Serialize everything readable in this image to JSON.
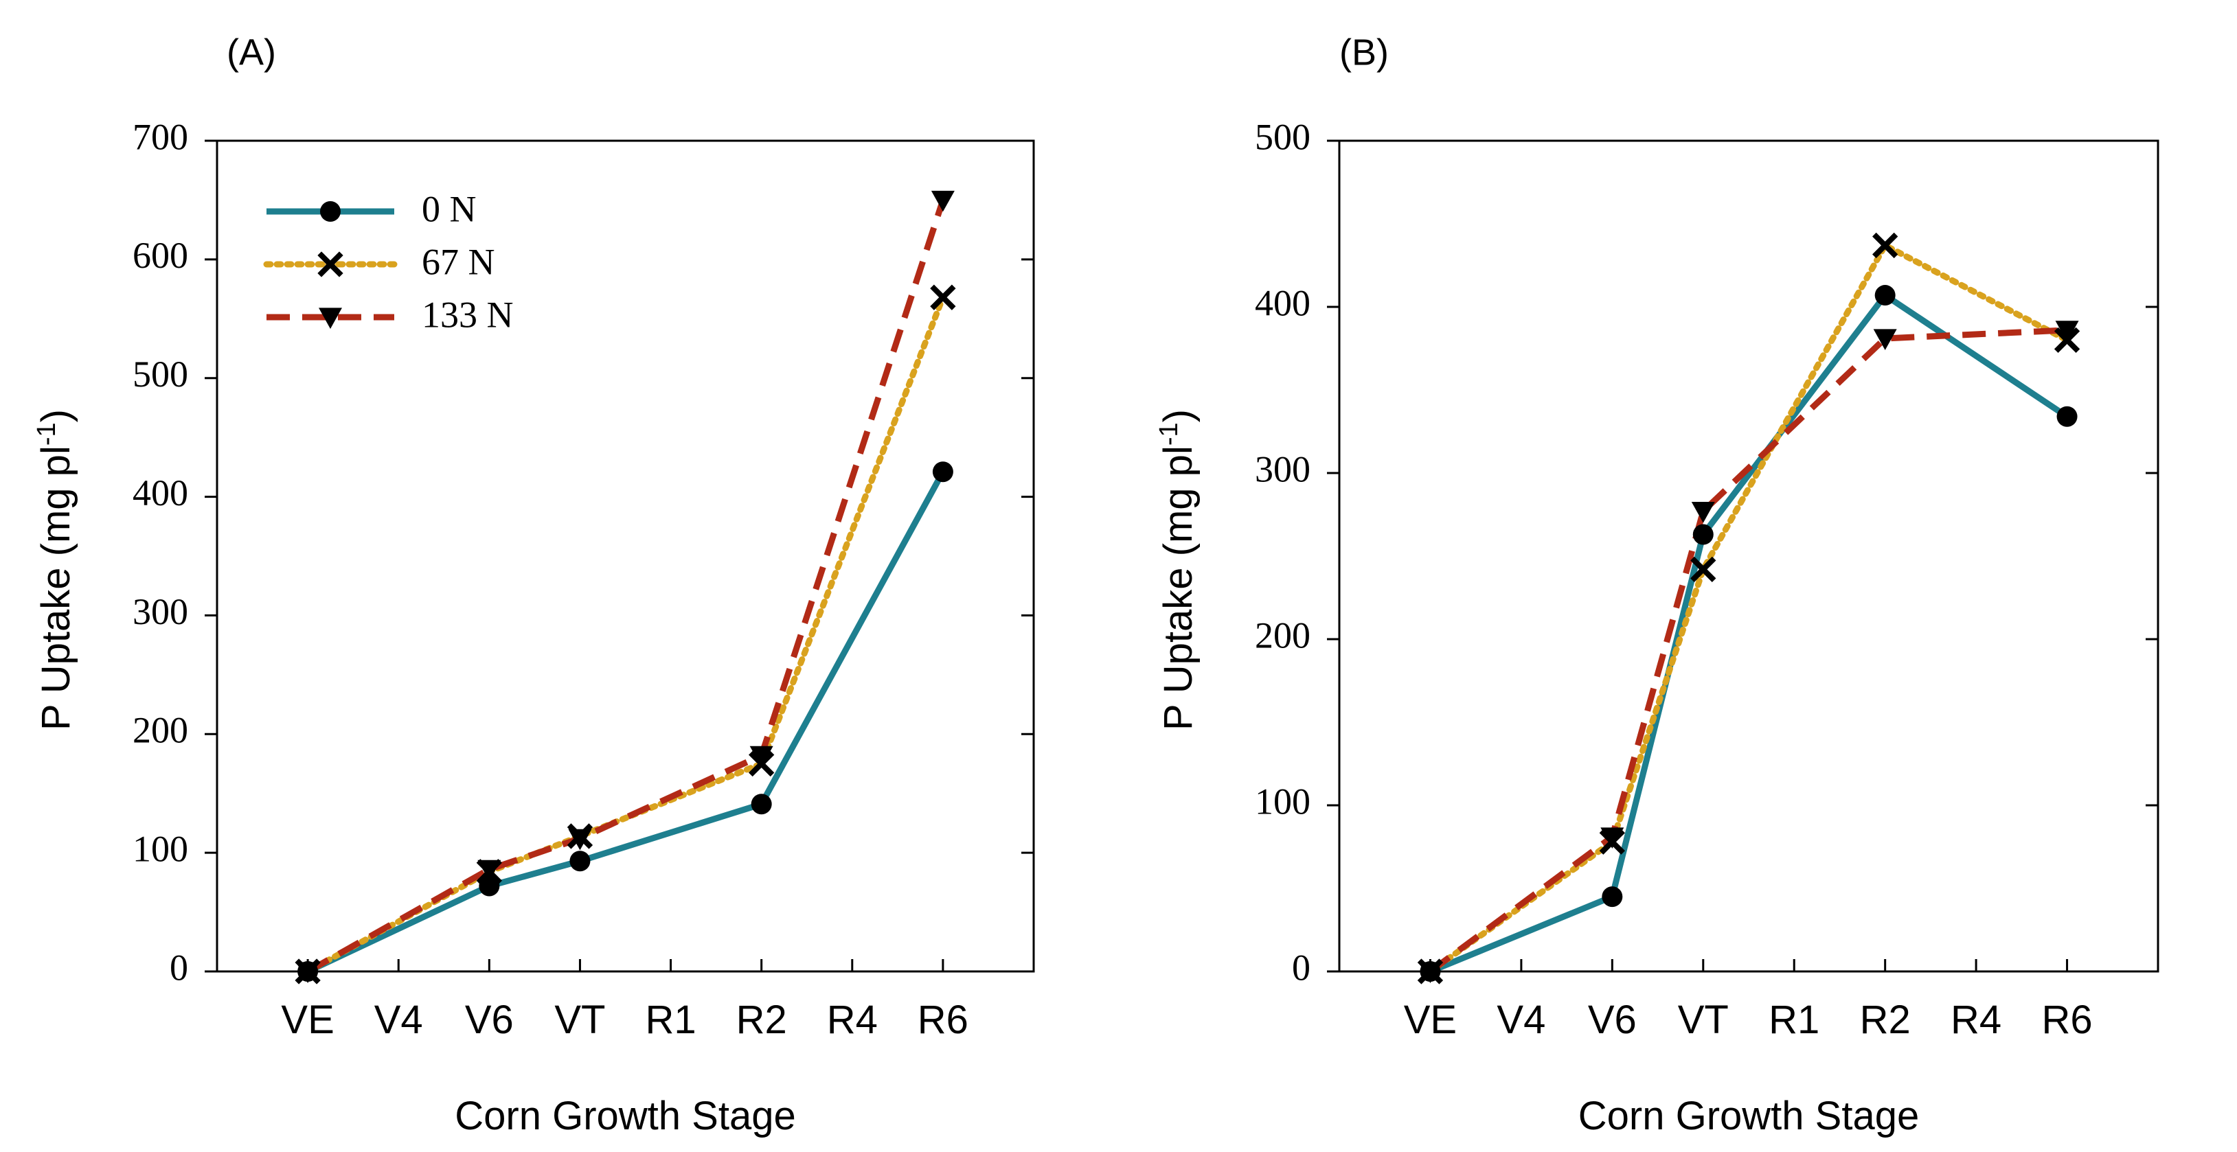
{
  "colors": {
    "s0": "#1e7f8f",
    "s67": "#d9a21e",
    "s133": "#b22a16",
    "axis": "#000000",
    "marker": "#000000"
  },
  "legend": [
    {
      "name": "0 N",
      "marker": "circle",
      "color_key": "s0",
      "dash": "solid"
    },
    {
      "name": "67 N",
      "marker": "x",
      "color_key": "s67",
      "dash": "dotted"
    },
    {
      "name": "133 N",
      "marker": "triangle-down",
      "color_key": "s133",
      "dash": "dashed"
    }
  ],
  "chart_data": [
    {
      "panel": "(A)",
      "type": "line",
      "xlabel": "Corn Growth Stage",
      "ylabel": "P Uptake (mg pl",
      "ylabel_sup": "-1",
      "ylabel_close": ")",
      "categories": [
        "VE",
        "V4",
        "V6",
        "VT",
        "R1",
        "R2",
        "R4",
        "R6"
      ],
      "ylim": [
        0,
        700
      ],
      "yticks": [
        0,
        100,
        200,
        300,
        400,
        500,
        600,
        700
      ],
      "legend_position": "top-left",
      "series": [
        {
          "name": "0 N",
          "x": [
            "VE",
            "V6",
            "VT",
            "R2",
            "R6"
          ],
          "values": [
            0,
            72,
            93,
            141,
            421
          ]
        },
        {
          "name": "67 N",
          "x": [
            "VE",
            "V6",
            "VT",
            "R2",
            "R6"
          ],
          "values": [
            0,
            84,
            114,
            175,
            568
          ]
        },
        {
          "name": "133 N",
          "x": [
            "VE",
            "V6",
            "VT",
            "R2",
            "R6"
          ],
          "values": [
            0,
            86,
            112,
            182,
            650
          ]
        }
      ]
    },
    {
      "panel": "(B)",
      "type": "line",
      "xlabel": "Corn Growth Stage",
      "ylabel": "P Uptake (mg pl",
      "ylabel_sup": "-1",
      "ylabel_close": ")",
      "categories": [
        "VE",
        "V4",
        "V6",
        "VT",
        "R1",
        "R2",
        "R4",
        "R6"
      ],
      "ylim": [
        0,
        500
      ],
      "yticks": [
        0,
        100,
        200,
        300,
        400,
        500
      ],
      "legend_position": "none",
      "series": [
        {
          "name": "0 N",
          "x": [
            "VE",
            "V6",
            "VT",
            "R2",
            "R6"
          ],
          "values": [
            0,
            45,
            263,
            407,
            334
          ]
        },
        {
          "name": "67 N",
          "x": [
            "VE",
            "V6",
            "VT",
            "R2",
            "R6"
          ],
          "values": [
            0,
            78,
            242,
            437,
            380
          ]
        },
        {
          "name": "133 N",
          "x": [
            "VE",
            "V6",
            "VT",
            "R2",
            "R6"
          ],
          "values": [
            0,
            81,
            277,
            381,
            386
          ]
        }
      ]
    }
  ]
}
